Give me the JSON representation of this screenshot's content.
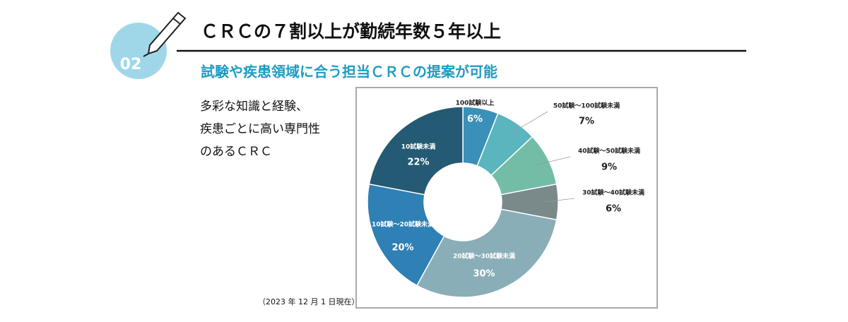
{
  "header": {
    "badge": "02",
    "title": "ＣＲＣの７割以上が勤続年数５年以上",
    "subtitle": "試験や疾患領域に合う担当ＣＲＣの提案が可能"
  },
  "body": {
    "lines": [
      "多彩な知識と経験、",
      "疾患ごとに高い専門性",
      "のあるＣＲＣ"
    ],
    "note": "（2023 年 12 月 1 日現在）"
  },
  "chart_data": {
    "type": "donut",
    "categories": [
      "100試験以上",
      "50試験～100試験未満",
      "40試験～50試験未満",
      "30試験～40試験未満",
      "20試験～30試験未満",
      "10試験～20試験未満",
      "10試験未満"
    ],
    "values": [
      6,
      7,
      9,
      6,
      30,
      20,
      22
    ],
    "value_labels": [
      "6%",
      "7%",
      "9%",
      "6%",
      "30%",
      "20%",
      "22%"
    ],
    "colors": [
      "#3a90b8",
      "#5ab5bf",
      "#73bda6",
      "#7a8a8a",
      "#89aeb8",
      "#2f80b4",
      "#245a73"
    ]
  }
}
